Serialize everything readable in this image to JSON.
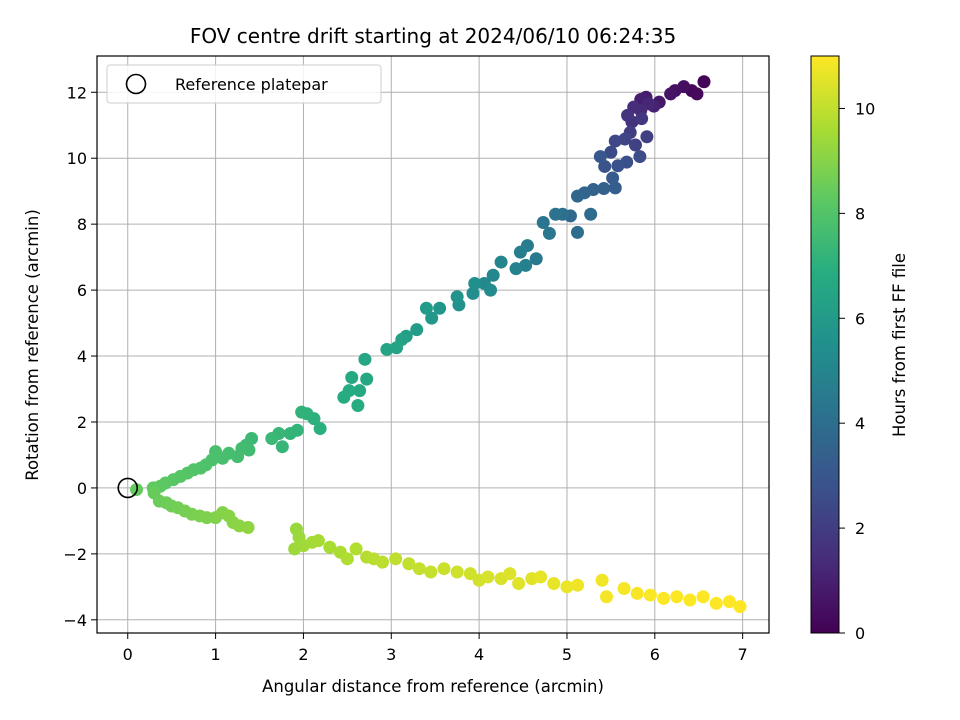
{
  "chart_data": {
    "type": "scatter",
    "title": "FOV centre drift starting at 2024/06/10 06:24:35",
    "xlabel": "Angular distance from reference (arcmin)",
    "ylabel": "Rotation from reference (arcmin)",
    "xlim": [
      -0.35,
      7.3
    ],
    "ylim": [
      -4.4,
      13.1
    ],
    "xticks": [
      0,
      1,
      2,
      3,
      4,
      5,
      6,
      7
    ],
    "xtick_labels": [
      "0",
      "1",
      "2",
      "3",
      "4",
      "5",
      "6",
      "7"
    ],
    "yticks": [
      -4,
      -2,
      0,
      2,
      4,
      6,
      8,
      10,
      12
    ],
    "ytick_labels": [
      "−4",
      "−2",
      "0",
      "2",
      "4",
      "6",
      "8",
      "10",
      "12"
    ],
    "grid": true,
    "legend": {
      "placement": "upper-left",
      "entries": [
        "Reference platepar"
      ]
    },
    "colorbar": {
      "label": "Hours from first FF file",
      "colormap": "viridis",
      "range": [
        0,
        11
      ],
      "ticks": [
        0,
        2,
        4,
        6,
        8,
        10
      ],
      "tick_labels": [
        "0",
        "2",
        "4",
        "6",
        "8",
        "10"
      ]
    },
    "reference_point": {
      "x": 0,
      "y": 0
    },
    "series": [
      {
        "points": [
          [
            6.56,
            12.32,
            0.1
          ],
          [
            6.42,
            12.05,
            0.2
          ],
          [
            6.48,
            11.95,
            0.3
          ],
          [
            6.33,
            12.17,
            0.4
          ],
          [
            6.23,
            12.05,
            0.5
          ],
          [
            6.18,
            11.95,
            0.6
          ],
          [
            6.05,
            11.7,
            0.7
          ],
          [
            5.9,
            11.85,
            0.9
          ],
          [
            5.84,
            11.78,
            1.0
          ],
          [
            5.99,
            11.58,
            1.1
          ],
          [
            5.93,
            11.65,
            1.2
          ],
          [
            5.84,
            11.45,
            1.3
          ],
          [
            5.76,
            11.55,
            1.4
          ],
          [
            5.74,
            11.1,
            1.6
          ],
          [
            5.69,
            11.3,
            1.7
          ],
          [
            5.85,
            11.2,
            1.8
          ],
          [
            5.72,
            10.78,
            2.0
          ],
          [
            5.91,
            10.65,
            2.1
          ],
          [
            5.78,
            10.4,
            2.2
          ],
          [
            5.66,
            10.58,
            2.3
          ],
          [
            5.55,
            10.52,
            2.4
          ],
          [
            5.5,
            10.18,
            2.5
          ],
          [
            5.83,
            10.05,
            2.6
          ],
          [
            5.68,
            9.88,
            2.7
          ],
          [
            5.58,
            9.77,
            2.8
          ],
          [
            5.43,
            9.75,
            2.9
          ],
          [
            5.38,
            10.05,
            3.0
          ],
          [
            5.52,
            9.4,
            3.2
          ],
          [
            5.55,
            9.1,
            3.3
          ],
          [
            5.42,
            9.08,
            3.4
          ],
          [
            5.3,
            9.05,
            3.5
          ],
          [
            5.2,
            8.95,
            3.6
          ],
          [
            5.12,
            8.85,
            3.7
          ],
          [
            5.04,
            8.25,
            3.8
          ],
          [
            5.27,
            8.3,
            3.9
          ],
          [
            5.12,
            7.75,
            4.0
          ],
          [
            4.95,
            8.3,
            4.1
          ],
          [
            4.87,
            8.3,
            4.2
          ],
          [
            4.73,
            8.05,
            4.3
          ],
          [
            4.8,
            7.72,
            4.4
          ],
          [
            4.65,
            6.95,
            4.5
          ],
          [
            4.55,
            7.35,
            4.6
          ],
          [
            4.47,
            7.15,
            4.7
          ],
          [
            4.53,
            6.75,
            4.8
          ],
          [
            4.42,
            6.65,
            4.9
          ],
          [
            4.25,
            6.85,
            5.0
          ],
          [
            4.16,
            6.45,
            5.1
          ],
          [
            4.06,
            6.2,
            5.2
          ],
          [
            4.13,
            6.0,
            5.3
          ],
          [
            3.93,
            5.9,
            5.4
          ],
          [
            3.95,
            6.2,
            5.5
          ],
          [
            3.77,
            5.55,
            5.6
          ],
          [
            3.75,
            5.8,
            5.7
          ],
          [
            3.55,
            5.45,
            5.8
          ],
          [
            3.46,
            5.15,
            5.9
          ],
          [
            3.4,
            5.45,
            6.0
          ],
          [
            3.29,
            4.8,
            6.1
          ],
          [
            3.17,
            4.6,
            6.2
          ],
          [
            3.12,
            4.5,
            6.3
          ],
          [
            3.06,
            4.25,
            6.4
          ],
          [
            2.95,
            4.2,
            6.5
          ],
          [
            2.7,
            3.9,
            6.55
          ],
          [
            2.72,
            3.3,
            6.6
          ],
          [
            2.64,
            2.95,
            6.65
          ],
          [
            2.55,
            3.35,
            6.7
          ],
          [
            2.52,
            2.95,
            6.75
          ],
          [
            2.46,
            2.75,
            6.8
          ],
          [
            2.62,
            2.5,
            6.85
          ],
          [
            2.19,
            1.8,
            7.0
          ],
          [
            2.12,
            2.1,
            7.05
          ],
          [
            2.04,
            2.25,
            7.1
          ],
          [
            1.98,
            2.3,
            7.15
          ],
          [
            1.93,
            1.75,
            7.2
          ],
          [
            1.85,
            1.65,
            7.25
          ],
          [
            1.76,
            1.25,
            7.3
          ],
          [
            1.72,
            1.65,
            7.35
          ],
          [
            1.64,
            1.5,
            7.4
          ],
          [
            1.41,
            1.5,
            7.45
          ],
          [
            1.35,
            1.3,
            7.5
          ],
          [
            1.38,
            1.15,
            7.55
          ],
          [
            1.3,
            1.2,
            7.6
          ],
          [
            1.25,
            0.95,
            7.65
          ],
          [
            1.15,
            1.05,
            7.7
          ],
          [
            1.08,
            0.9,
            7.75
          ],
          [
            1.0,
            1.1,
            7.8
          ],
          [
            0.96,
            0.85,
            7.85
          ],
          [
            0.89,
            0.7,
            7.9
          ],
          [
            0.83,
            0.6,
            7.95
          ],
          [
            0.75,
            0.55,
            8.0
          ],
          [
            0.68,
            0.45,
            8.05
          ],
          [
            0.6,
            0.35,
            8.1
          ],
          [
            0.52,
            0.25,
            8.15
          ],
          [
            0.43,
            0.15,
            8.2
          ],
          [
            0.37,
            0.05,
            8.25
          ],
          [
            0.29,
            0.0,
            8.3
          ],
          [
            0.1,
            -0.05,
            8.4
          ],
          [
            0.3,
            -0.15,
            8.45
          ],
          [
            0.36,
            -0.4,
            8.5
          ],
          [
            0.44,
            -0.45,
            8.55
          ],
          [
            0.5,
            -0.55,
            8.6
          ],
          [
            0.57,
            -0.6,
            8.65
          ],
          [
            0.65,
            -0.7,
            8.7
          ],
          [
            0.73,
            -0.8,
            8.75
          ],
          [
            0.82,
            -0.85,
            8.8
          ],
          [
            0.9,
            -0.9,
            8.85
          ],
          [
            1.0,
            -0.9,
            8.9
          ],
          [
            1.08,
            -0.75,
            8.95
          ],
          [
            1.15,
            -0.85,
            9.0
          ],
          [
            1.2,
            -1.05,
            9.05
          ],
          [
            1.27,
            -1.15,
            9.1
          ],
          [
            1.37,
            -1.2,
            9.15
          ],
          [
            1.92,
            -1.25,
            9.3
          ],
          [
            1.95,
            -1.5,
            9.35
          ],
          [
            1.9,
            -1.85,
            9.4
          ],
          [
            2.0,
            -1.75,
            9.45
          ],
          [
            2.1,
            -1.65,
            9.5
          ],
          [
            2.17,
            -1.6,
            9.55
          ],
          [
            2.3,
            -1.8,
            9.6
          ],
          [
            2.42,
            -1.95,
            9.65
          ],
          [
            2.5,
            -2.15,
            9.7
          ],
          [
            2.6,
            -1.85,
            9.75
          ],
          [
            2.72,
            -2.1,
            9.8
          ],
          [
            2.8,
            -2.15,
            9.85
          ],
          [
            2.9,
            -2.25,
            9.9
          ],
          [
            3.05,
            -2.15,
            9.95
          ],
          [
            3.2,
            -2.3,
            10.0
          ],
          [
            3.32,
            -2.45,
            10.05
          ],
          [
            3.45,
            -2.55,
            10.1
          ],
          [
            3.6,
            -2.45,
            10.15
          ],
          [
            3.75,
            -2.55,
            10.2
          ],
          [
            3.9,
            -2.6,
            10.25
          ],
          [
            4.0,
            -2.8,
            10.3
          ],
          [
            4.1,
            -2.7,
            10.35
          ],
          [
            4.25,
            -2.75,
            10.4
          ],
          [
            4.35,
            -2.6,
            10.45
          ],
          [
            4.45,
            -2.9,
            10.5
          ],
          [
            4.6,
            -2.75,
            10.55
          ],
          [
            4.7,
            -2.7,
            10.6
          ],
          [
            4.85,
            -2.9,
            10.65
          ],
          [
            5.0,
            -3.0,
            10.7
          ],
          [
            5.12,
            -2.95,
            10.75
          ],
          [
            5.4,
            -2.8,
            10.8
          ],
          [
            5.45,
            -3.3,
            10.85
          ],
          [
            5.65,
            -3.05,
            10.9
          ],
          [
            5.8,
            -3.2,
            10.92
          ],
          [
            5.95,
            -3.25,
            10.95
          ],
          [
            6.1,
            -3.35,
            10.97
          ],
          [
            6.25,
            -3.3,
            10.98
          ],
          [
            6.4,
            -3.4,
            10.99
          ],
          [
            6.55,
            -3.3,
            11.0
          ],
          [
            6.7,
            -3.5,
            11.0
          ],
          [
            6.85,
            -3.45,
            11.0
          ],
          [
            6.97,
            -3.6,
            11.0
          ]
        ]
      }
    ]
  }
}
